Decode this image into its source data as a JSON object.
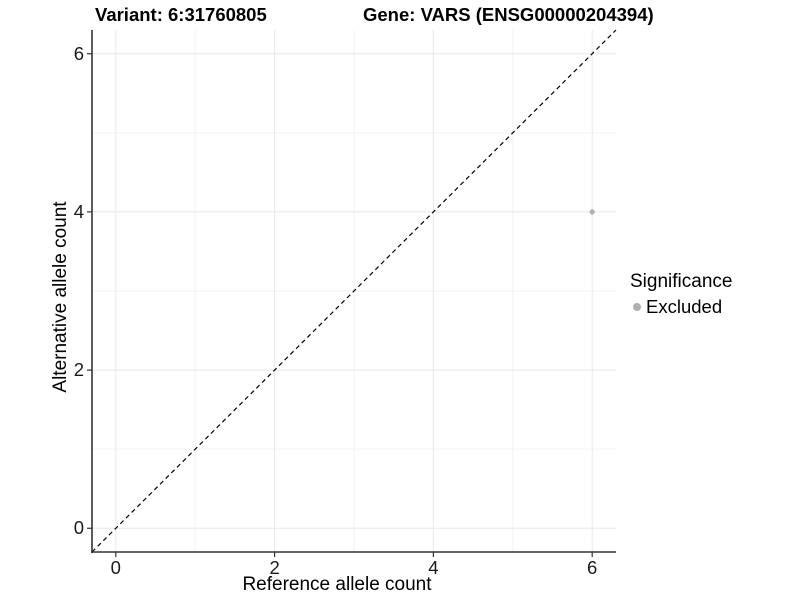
{
  "figure": {
    "title_left": "Variant: 6:31760805",
    "title_right": "Gene: VARS (ENSG00000204394)"
  },
  "axes": {
    "x_label": "Reference allele count",
    "y_label": "Alternative allele count"
  },
  "legend": {
    "title": "Significance",
    "items": [
      {
        "label": "Excluded",
        "color": "#b0b0b0"
      }
    ]
  },
  "chart_data": {
    "type": "scatter",
    "title": "Variant: 6:31760805   Gene: VARS (ENSG00000204394)",
    "xlabel": "Reference allele count",
    "ylabel": "Alternative allele count",
    "xlim": [
      -0.3,
      6.3
    ],
    "ylim": [
      -0.3,
      6.3
    ],
    "x_ticks": [
      0,
      2,
      4,
      6
    ],
    "y_ticks": [
      0,
      2,
      4,
      6
    ],
    "x_minor_ticks": [
      1,
      3,
      5
    ],
    "y_minor_ticks": [
      1,
      3,
      5
    ],
    "grid": "on",
    "legend_position": "right",
    "legend_title": "Significance",
    "series": [
      {
        "name": "Excluded",
        "color": "#b0b0b0",
        "points": [
          {
            "x": 6,
            "y": 4
          }
        ]
      }
    ],
    "reference_line": {
      "type": "identity y=x",
      "style": "dashed",
      "color": "#000000"
    },
    "colors": {
      "grid_major": "#e8e8e8",
      "grid_minor": "#f3f3f3",
      "axis_line": "#333333",
      "tick_mark": "#333333",
      "background": "#ffffff"
    }
  }
}
